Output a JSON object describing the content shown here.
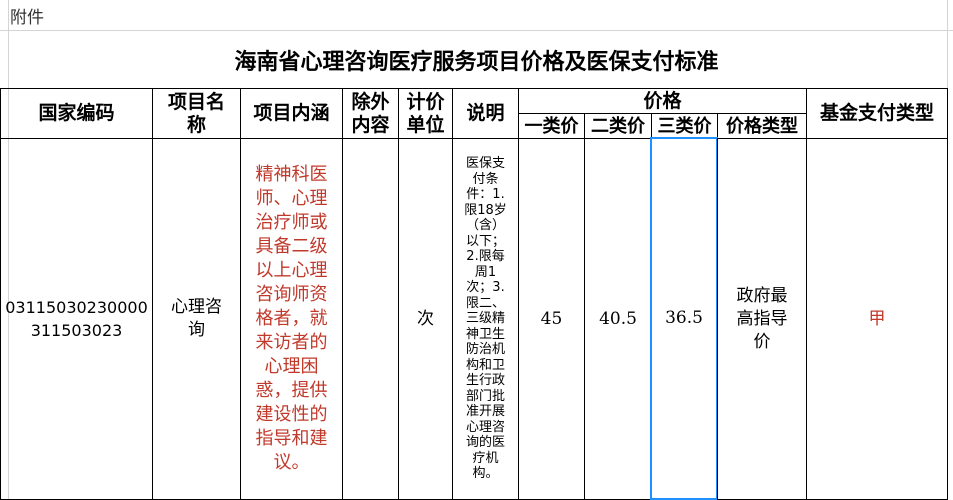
{
  "attachment_label": "附件",
  "title": "海南省心理咨询医疗服务项目价格及医保支付标准",
  "headers": {
    "code": "国家编码",
    "name": "项目名称",
    "content": "项目内涵",
    "excluded": "除外内容",
    "unit": "计价单位",
    "note": "说明",
    "price": "价格",
    "price1": "一类价",
    "price2": "二类价",
    "price3": "三类价",
    "price_type": "价格类型",
    "fund_type": "基金支付类型"
  },
  "row": {
    "code_line1": "03115030230000",
    "code_line2": "311503023",
    "name": "心理咨询",
    "content": "精神科医师、心理治疗师或具备二级以上心理咨询师资格者，就来访者的心理困惑，提供建设性的指导和建议。",
    "excluded": "",
    "unit": "次",
    "note": "医保支付条件：1.限18岁（含）以下；2.限每周1次；3.限二、三级精神卫生防治机构和卫生行政部门批准开展心理咨询的医疗机构。",
    "price1": "45",
    "price2": "40.5",
    "price3": "36.5",
    "price_type": "政府最高指导价",
    "fund_type": "甲"
  },
  "colors": {
    "content_text": "#c0392b",
    "fund_text": "#c0392b",
    "selection": "#1e90ff"
  }
}
